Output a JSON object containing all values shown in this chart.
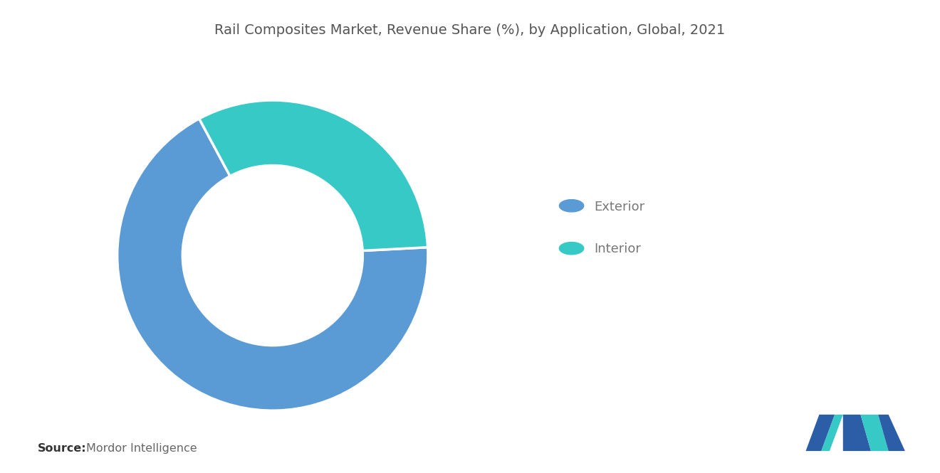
{
  "title": "Rail Composites Market, Revenue Share (%), by Application, Global, 2021",
  "title_fontsize": 14,
  "title_color": "#555555",
  "segments": [
    {
      "label": "Exterior",
      "value": 68,
      "color": "#5B9BD5"
    },
    {
      "label": "Interior",
      "value": 32,
      "color": "#36C9C6"
    }
  ],
  "startangle": 3,
  "counterclock": false,
  "donut_width": 0.42,
  "background_color": "#ffffff",
  "legend_fontsize": 13,
  "legend_text_color": "#777777",
  "source_bold": "Source:",
  "source_normal": "Mordor Intelligence",
  "source_fontsize": 11.5,
  "source_bold_color": "#333333",
  "source_normal_color": "#666666",
  "logo_m_color": "#2B5EA7",
  "logo_t_color": "#36C9C6"
}
